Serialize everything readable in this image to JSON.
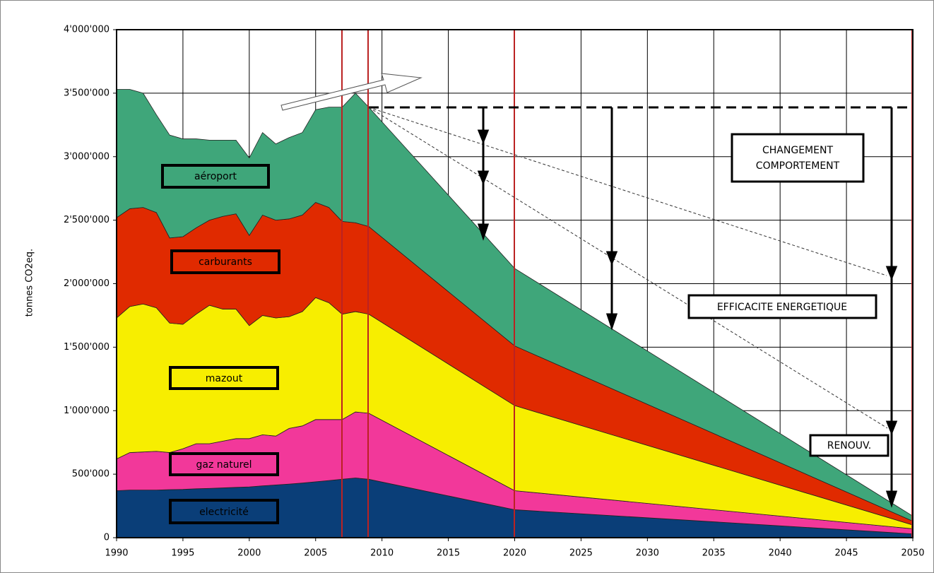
{
  "chart_data": {
    "type": "stacked_area",
    "y_label": "tonnes CO2eq.",
    "x": [
      1990,
      1991,
      1992,
      1993,
      1994,
      1995,
      1996,
      1997,
      1998,
      1999,
      2000,
      2001,
      2002,
      2003,
      2004,
      2005,
      2006,
      2007,
      2008,
      2009,
      2020,
      2050
    ],
    "series": [
      {
        "name": "electricité",
        "color": "#0a3e78",
        "values": [
          370000,
          375000,
          375000,
          375000,
          378000,
          380000,
          385000,
          388000,
          392000,
          396000,
          400000,
          408000,
          415000,
          422000,
          430000,
          440000,
          450000,
          460000,
          470000,
          460000,
          220000,
          30000
        ]
      },
      {
        "name": "gaz naturel",
        "color": "#f2389a",
        "values": [
          250000,
          295000,
          300000,
          305000,
          292000,
          320000,
          355000,
          352000,
          368000,
          384000,
          380000,
          402000,
          385000,
          438000,
          450000,
          490000,
          480000,
          470000,
          520000,
          520000,
          150000,
          40000
        ]
      },
      {
        "name": "mazout",
        "color": "#f7ee00",
        "values": [
          1110000,
          1150000,
          1165000,
          1130000,
          1020000,
          980000,
          1020000,
          1090000,
          1040000,
          1020000,
          890000,
          940000,
          930000,
          880000,
          900000,
          960000,
          920000,
          830000,
          790000,
          780000,
          670000,
          30000
        ]
      },
      {
        "name": "carburants",
        "color": "#e02a00",
        "values": [
          790000,
          770000,
          760000,
          750000,
          670000,
          690000,
          680000,
          670000,
          730000,
          750000,
          710000,
          790000,
          770000,
          770000,
          760000,
          750000,
          750000,
          730000,
          700000,
          690000,
          470000,
          30000
        ]
      },
      {
        "name": "aéroport",
        "color": "#3fa67a",
        "values": [
          1010000,
          940000,
          900000,
          770000,
          810000,
          770000,
          700000,
          630000,
          600000,
          580000,
          610000,
          650000,
          600000,
          640000,
          650000,
          730000,
          790000,
          900000,
          1020000,
          940000,
          610000,
          40000
        ]
      }
    ],
    "annotations": [
      "CHANGEMENT",
      "COMPORTEMENT",
      "EFFICACITE ENERGETIQUE",
      "RENOUV."
    ],
    "xlim": [
      1990,
      2050
    ],
    "xticks": [
      1990,
      1995,
      2000,
      2005,
      2010,
      2015,
      2020,
      2025,
      2030,
      2035,
      2040,
      2045,
      2050
    ],
    "ylim": [
      0,
      4000000
    ],
    "yticks": [
      0,
      {
        "value": 500000,
        "label": "500'000"
      },
      {
        "value": 1000000,
        "label": "1'000'000"
      },
      {
        "value": 1500000,
        "label": "1'500'000"
      },
      {
        "value": 2000000,
        "label": "2'000'000"
      },
      {
        "value": 2500000,
        "label": "2'500'000"
      },
      {
        "value": 3000000,
        "label": "3'000'000"
      },
      {
        "value": 3500000,
        "label": "3'500'000"
      },
      {
        "value": 4000000,
        "label": "4'000'000"
      }
    ],
    "grid": true
  }
}
